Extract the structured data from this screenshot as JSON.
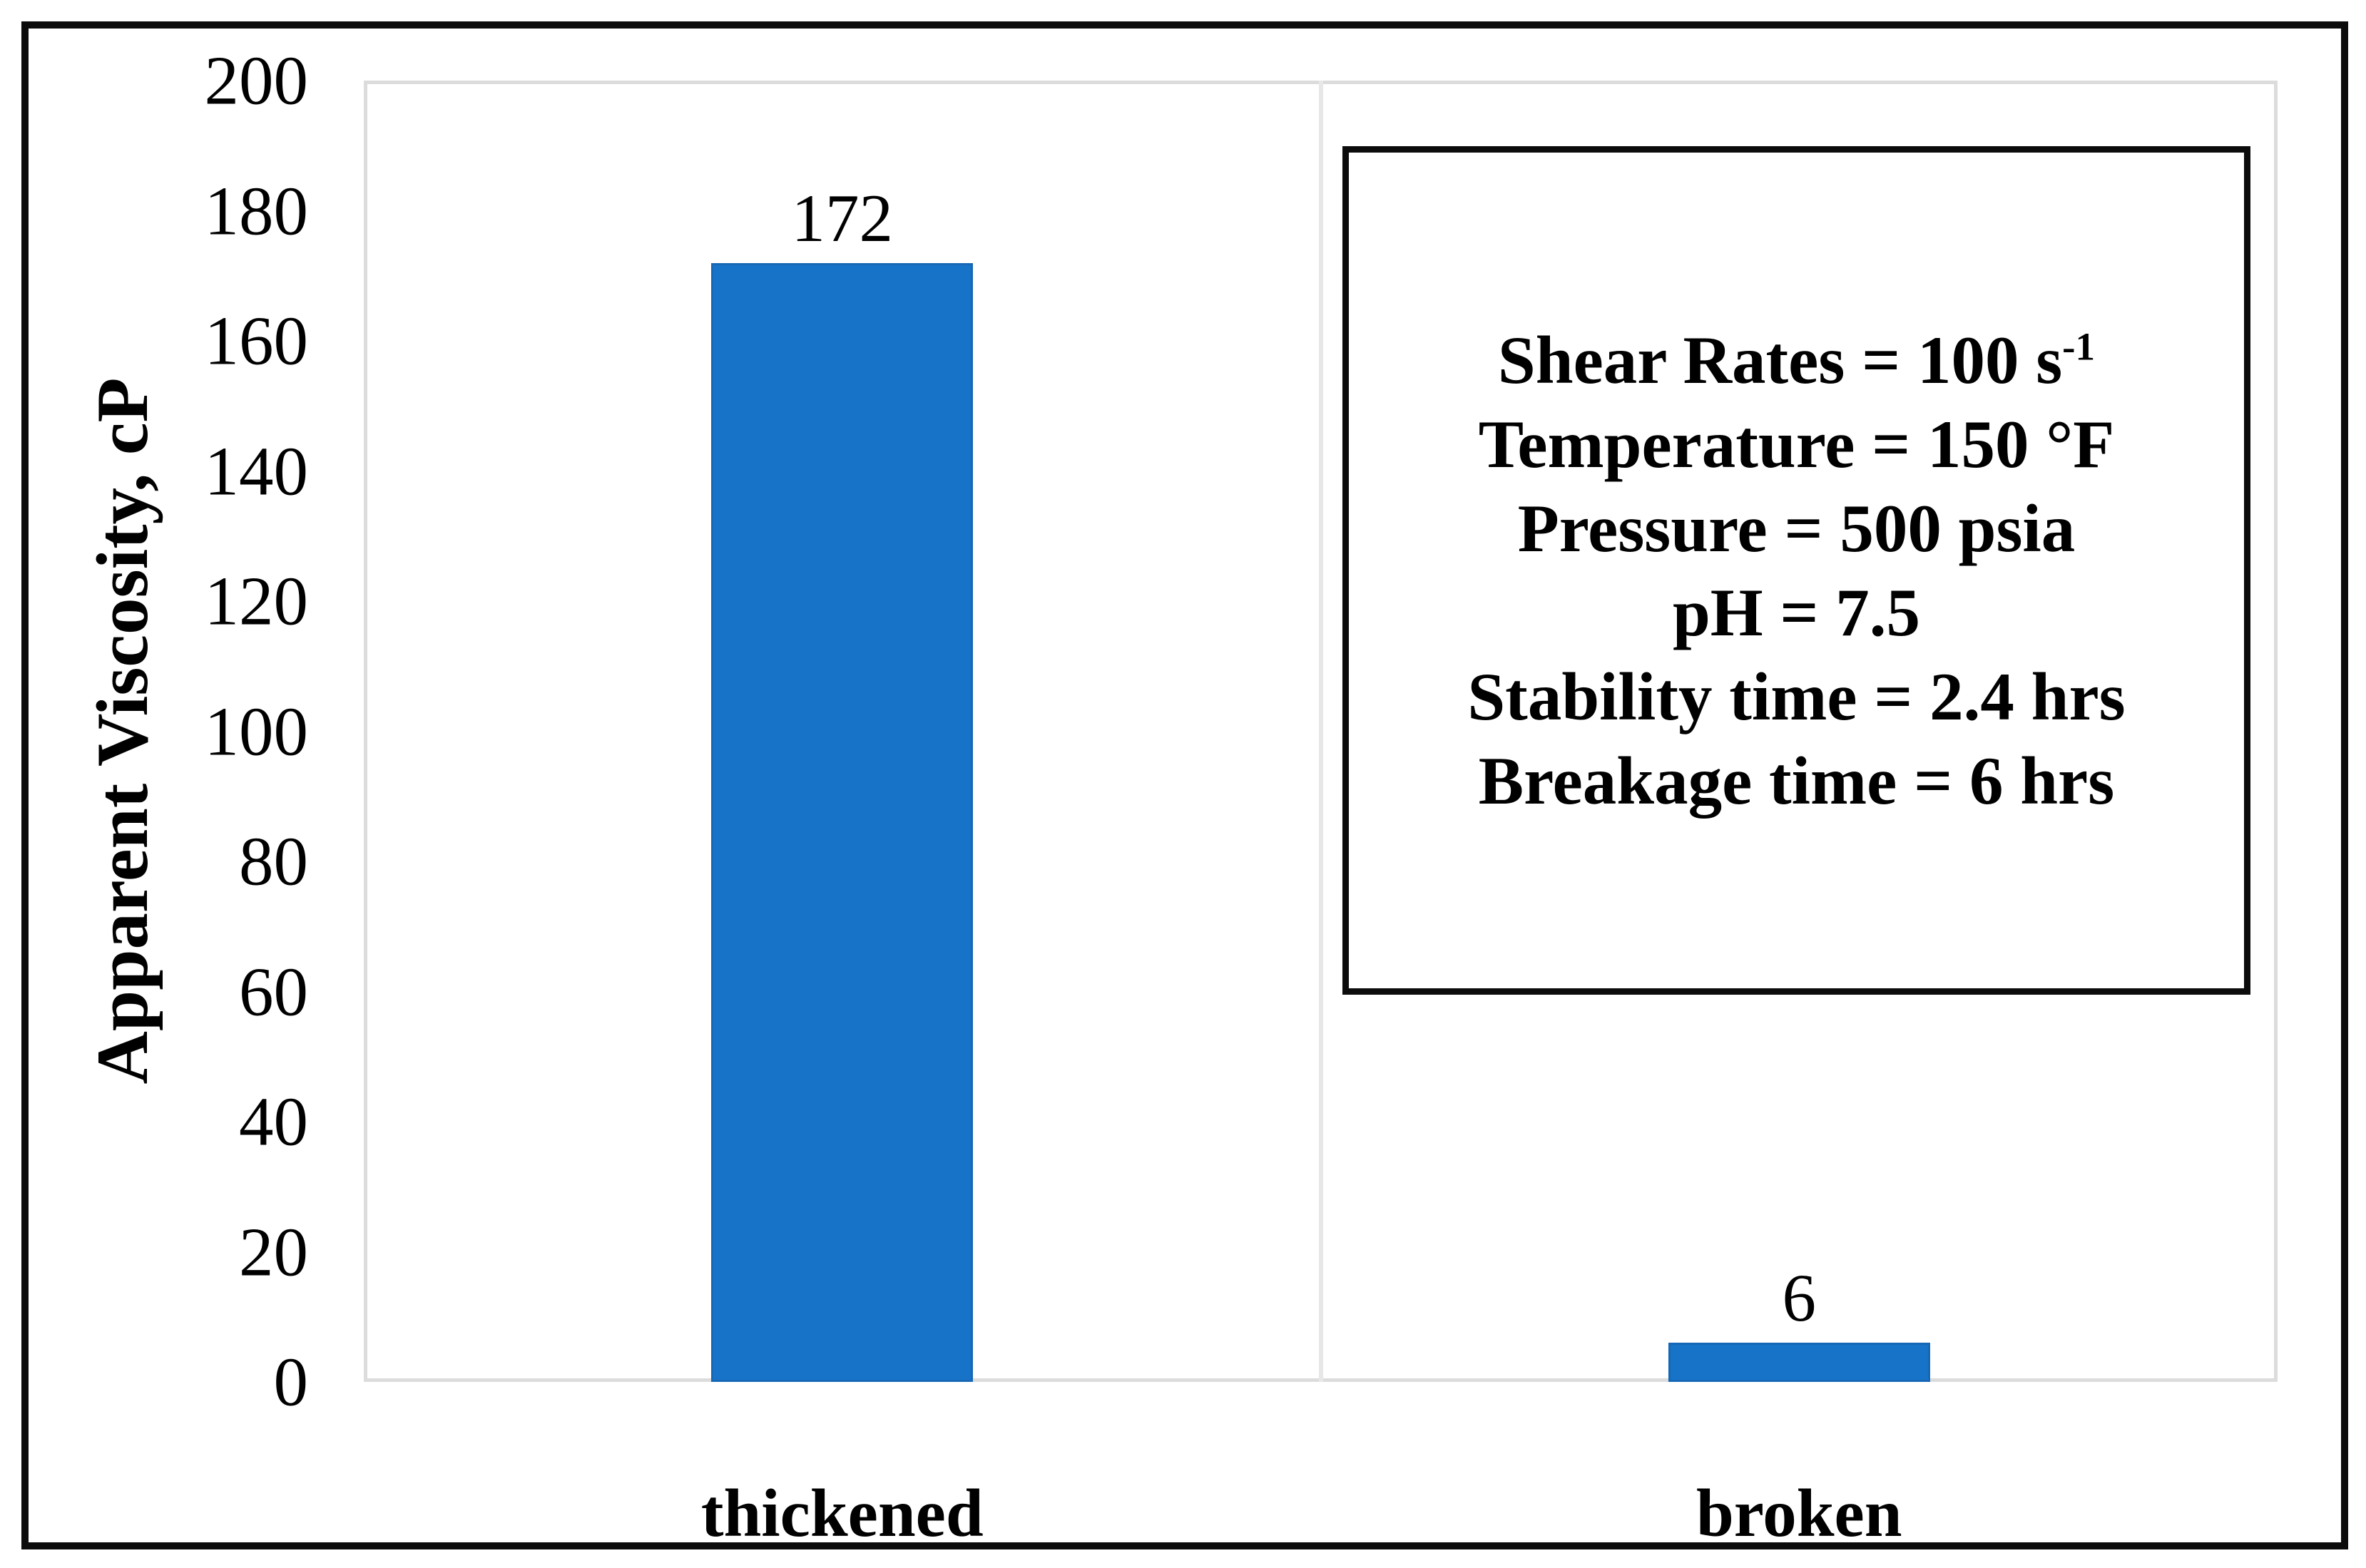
{
  "chart_data": {
    "type": "bar",
    "categories": [
      "thickened",
      "broken"
    ],
    "values": [
      172,
      6
    ],
    "title": "",
    "xlabel": "",
    "ylabel": "Apparent Viscosity, cP",
    "ylim": [
      0,
      200
    ],
    "yticks": [
      0,
      20,
      40,
      60,
      80,
      100,
      120,
      140,
      160,
      180,
      200
    ],
    "grid": "vertical category divider only, light gray plot border, no horizontal gridlines",
    "legend": "none",
    "bar_color": "#1773C8",
    "data_labels": [
      "172",
      "6"
    ],
    "annotation_box": {
      "lines": [
        {
          "text": "Shear Rates = 100 s",
          "sup": "-1"
        },
        {
          "text": "Temperature = 150 °F"
        },
        {
          "text": "Pressure = 500 psia"
        },
        {
          "text": "pH = 7.5"
        },
        {
          "text": "Stability time = 2.4 hrs"
        },
        {
          "text": "Breakage time = 6 hrs"
        }
      ]
    }
  },
  "colors": {
    "bar_fill": "#1773C8",
    "bar_edge": "#1668B6",
    "plot_border": "#DCDCDC",
    "divider": "#E7E7E7",
    "figure_border": "#0C0C0C",
    "background": "#FFFFFF",
    "text": "#000000"
  }
}
